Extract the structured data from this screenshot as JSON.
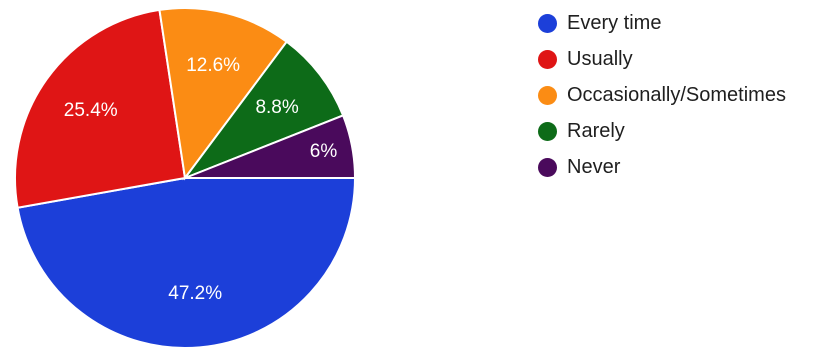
{
  "chart_data": {
    "type": "pie",
    "title": "",
    "categories": [
      "Every time",
      "Usually",
      "Occasionally/Sometimes",
      "Rarely",
      "Never"
    ],
    "values": [
      47.2,
      25.4,
      12.6,
      8.8,
      6
    ],
    "labels": [
      "47.2%",
      "25.4%",
      "12.6%",
      "8.8%",
      "6%"
    ],
    "colors": [
      "#1c3fd9",
      "#df1515",
      "#fb8c14",
      "#0d6b18",
      "#4a0a5c"
    ],
    "legend": "right",
    "start": "3 o'clock, clockwise"
  }
}
